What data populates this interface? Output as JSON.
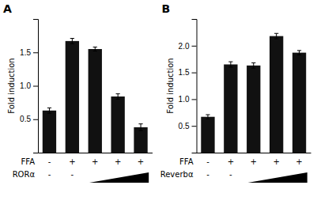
{
  "chart_data": [
    {
      "type": "bar",
      "title": "A",
      "y_label": "Fold induction",
      "categories": [
        null,
        null,
        null,
        null,
        null
      ],
      "values": [
        0.63,
        1.67,
        1.55,
        0.84,
        0.38
      ],
      "errors": [
        0.04,
        0.04,
        0.03,
        0.04,
        0.05
      ],
      "color": "#111111",
      "ylim": [
        0,
        2.0
      ],
      "yticks": [
        0.5,
        {
          "value": 1.0,
          "label": "1.0"
        },
        1.5
      ],
      "annotations": [
        {
          "text": "FFA",
          "labels": [
            "-",
            "+",
            "+",
            "+",
            "+"
          ]
        },
        {
          "text": "RORα",
          "labels": [
            "-",
            "-",
            null,
            null,
            null
          ]
        }
      ]
    },
    {
      "type": "bar",
      "title": "B",
      "y_label": "Fold induction",
      "categories": [
        null,
        null,
        null,
        null,
        null
      ],
      "values": [
        0.67,
        1.65,
        1.63,
        2.18,
        1.87
      ],
      "errors": [
        0.04,
        0.05,
        0.05,
        0.05,
        0.04
      ],
      "color": "#111111",
      "ylim": [
        0,
        2.5
      ],
      "yticks": [
        0.5,
        {
          "value": 1.0,
          "label": "1.0"
        },
        1.5,
        {
          "value": 2.0,
          "label": "2.0"
        }
      ],
      "annotations": [
        {
          "text": "FFA",
          "labels": [
            "-",
            "+",
            "+",
            "+",
            "+"
          ]
        },
        {
          "text": "Reverbα",
          "labels": [
            "-",
            "-",
            null,
            null,
            null
          ]
        }
      ]
    }
  ]
}
